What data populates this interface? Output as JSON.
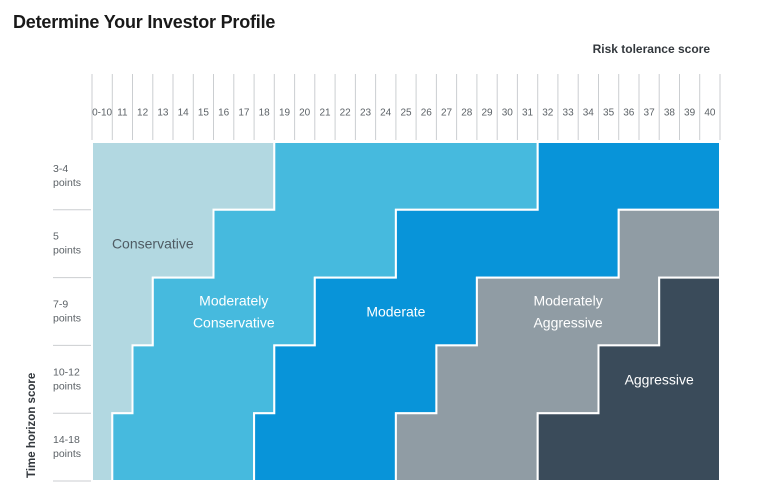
{
  "title": "Determine Your Investor Profile",
  "colors": {
    "background": "#ffffff",
    "title_text": "#191919",
    "axis_title_text": "#33383d",
    "tick_text": "#5c6267",
    "grid_line": "#cbced1",
    "region_border": "#ffffff"
  },
  "chart_data": {
    "type": "heatmap",
    "title": "Determine Your Investor Profile",
    "x_label": "Risk tolerance score",
    "y_label": "Time horizon score",
    "columns": [
      "0-10",
      "11",
      "12",
      "13",
      "14",
      "15",
      "16",
      "17",
      "18",
      "19",
      "20",
      "21",
      "22",
      "23",
      "24",
      "25",
      "26",
      "27",
      "28",
      "29",
      "30",
      "31",
      "32",
      "33",
      "34",
      "35",
      "36",
      "37",
      "38",
      "39",
      "40"
    ],
    "rows": [
      {
        "label": [
          "3-4",
          "points"
        ]
      },
      {
        "label": [
          "5",
          "points"
        ]
      },
      {
        "label": [
          "7-9",
          "points"
        ]
      },
      {
        "label": [
          "10-12",
          "points"
        ]
      },
      {
        "label": [
          "14-18",
          "points"
        ]
      }
    ],
    "regions": [
      {
        "name": "Conservative",
        "color": "#b2d8e1",
        "text_color": "#4f5b63",
        "label_lines": [
          "Conservative"
        ],
        "label_row": 1,
        "score_ranges_by_row": [
          [
            0,
            18
          ],
          [
            0,
            15
          ],
          [
            0,
            12
          ],
          [
            0,
            11
          ],
          [
            0,
            10
          ]
        ]
      },
      {
        "name": "Moderately Conservative",
        "color": "#46bade",
        "text_color": "#ffffff",
        "label_lines": [
          "Moderately",
          "Conservative"
        ],
        "label_row": 2,
        "score_ranges_by_row": [
          [
            19,
            31
          ],
          [
            16,
            24
          ],
          [
            13,
            20
          ],
          [
            12,
            18
          ],
          [
            11,
            17
          ]
        ]
      },
      {
        "name": "Moderate",
        "color": "#0894d9",
        "text_color": "#ffffff",
        "label_lines": [
          "Moderate"
        ],
        "label_row": 2,
        "score_ranges_by_row": [
          [
            32,
            40
          ],
          [
            25,
            35
          ],
          [
            21,
            28
          ],
          [
            19,
            26
          ],
          [
            18,
            24
          ]
        ]
      },
      {
        "name": "Moderately Aggressive",
        "color": "#909ca4",
        "text_color": "#ffffff",
        "label_lines": [
          "Moderately",
          "Aggressive"
        ],
        "label_row": 2,
        "score_ranges_by_row": [
          null,
          [
            36,
            40
          ],
          [
            29,
            37
          ],
          [
            27,
            34
          ],
          [
            25,
            31
          ]
        ]
      },
      {
        "name": "Aggressive",
        "color": "#3a4b5a",
        "text_color": "#ffffff",
        "label_lines": [
          "Aggressive"
        ],
        "label_row": 3,
        "score_ranges_by_row": [
          null,
          null,
          [
            38,
            40
          ],
          [
            35,
            40
          ],
          [
            32,
            40
          ]
        ]
      }
    ]
  }
}
